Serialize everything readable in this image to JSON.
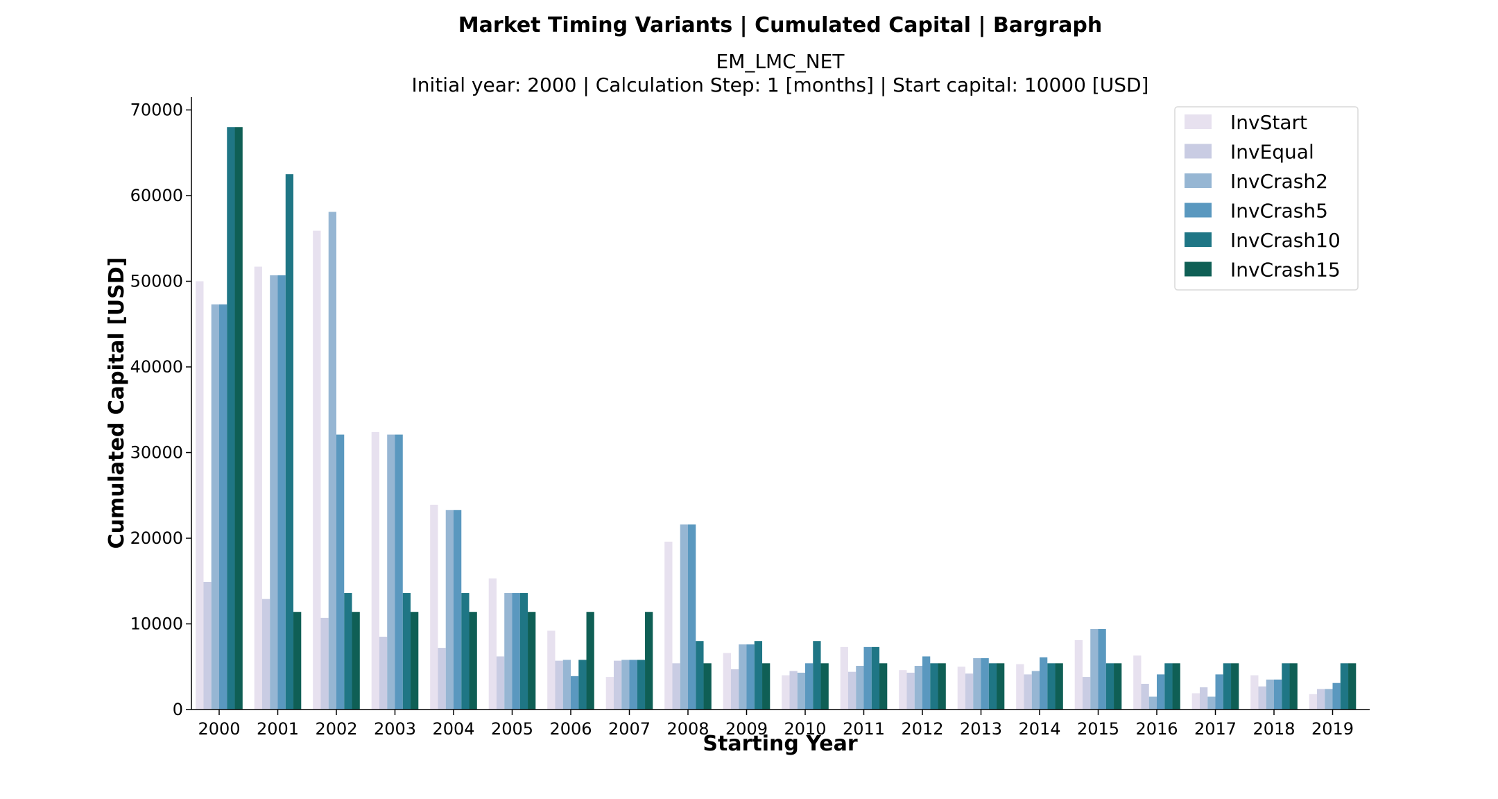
{
  "chart_data": {
    "type": "bar",
    "title": "Market Timing Variants | Cumulated Capital | Bargraph",
    "subtitle_line1": "EM_LMC_NET",
    "subtitle_line2": "Initial year: 2000 | Calculation Step: 1 [months] | Start capital: 10000 [USD]",
    "xlabel": "Starting Year",
    "ylabel": "Cumulated Capital [USD]",
    "ylim": [
      0,
      71500
    ],
    "yticks": [
      0,
      10000,
      20000,
      30000,
      40000,
      50000,
      60000,
      70000
    ],
    "grid": false,
    "legend_position": "top-right",
    "categories": [
      "2000",
      "2001",
      "2002",
      "2003",
      "2004",
      "2005",
      "2006",
      "2007",
      "2008",
      "2009",
      "2010",
      "2011",
      "2012",
      "2013",
      "2014",
      "2015",
      "2016",
      "2017",
      "2018",
      "2019"
    ],
    "series": [
      {
        "name": "InvStart",
        "color": "#e7e1ef",
        "values": [
          50000,
          51700,
          55900,
          32400,
          23900,
          15300,
          9200,
          3800,
          19600,
          6600,
          4000,
          7300,
          4600,
          5000,
          5300,
          8100,
          6300,
          1900,
          4000,
          1800
        ]
      },
      {
        "name": "InvEqual",
        "color": "#c9cce3",
        "values": [
          14900,
          12900,
          10700,
          8500,
          7200,
          6200,
          5700,
          5700,
          5400,
          4700,
          4500,
          4400,
          4300,
          4200,
          4100,
          3800,
          3000,
          2600,
          2700,
          2400
        ]
      },
      {
        "name": "InvCrash2",
        "color": "#96b6d3",
        "values": [
          47300,
          50700,
          58100,
          32100,
          23300,
          13600,
          5800,
          5800,
          21600,
          7600,
          4300,
          5100,
          5100,
          6000,
          4500,
          9400,
          1500,
          1500,
          3500,
          2400
        ]
      },
      {
        "name": "InvCrash5",
        "color": "#5a98bf",
        "values": [
          47300,
          50700,
          32100,
          32100,
          23300,
          13600,
          3900,
          5800,
          21600,
          7600,
          5400,
          7300,
          6200,
          6000,
          6100,
          9400,
          4100,
          4100,
          3500,
          3100
        ]
      },
      {
        "name": "InvCrash10",
        "color": "#1f7685",
        "values": [
          68000,
          62500,
          13600,
          13600,
          13600,
          13600,
          5800,
          5800,
          8000,
          8000,
          8000,
          7300,
          5400,
          5400,
          5400,
          5400,
          5400,
          5400,
          5400,
          5400
        ]
      },
      {
        "name": "InvCrash15",
        "color": "#0f5f55",
        "values": [
          68000,
          11400,
          11400,
          11400,
          11400,
          11400,
          11400,
          11400,
          5400,
          5400,
          5400,
          5400,
          5400,
          5400,
          5400,
          5400,
          5400,
          5400,
          5400,
          5400
        ]
      }
    ]
  }
}
